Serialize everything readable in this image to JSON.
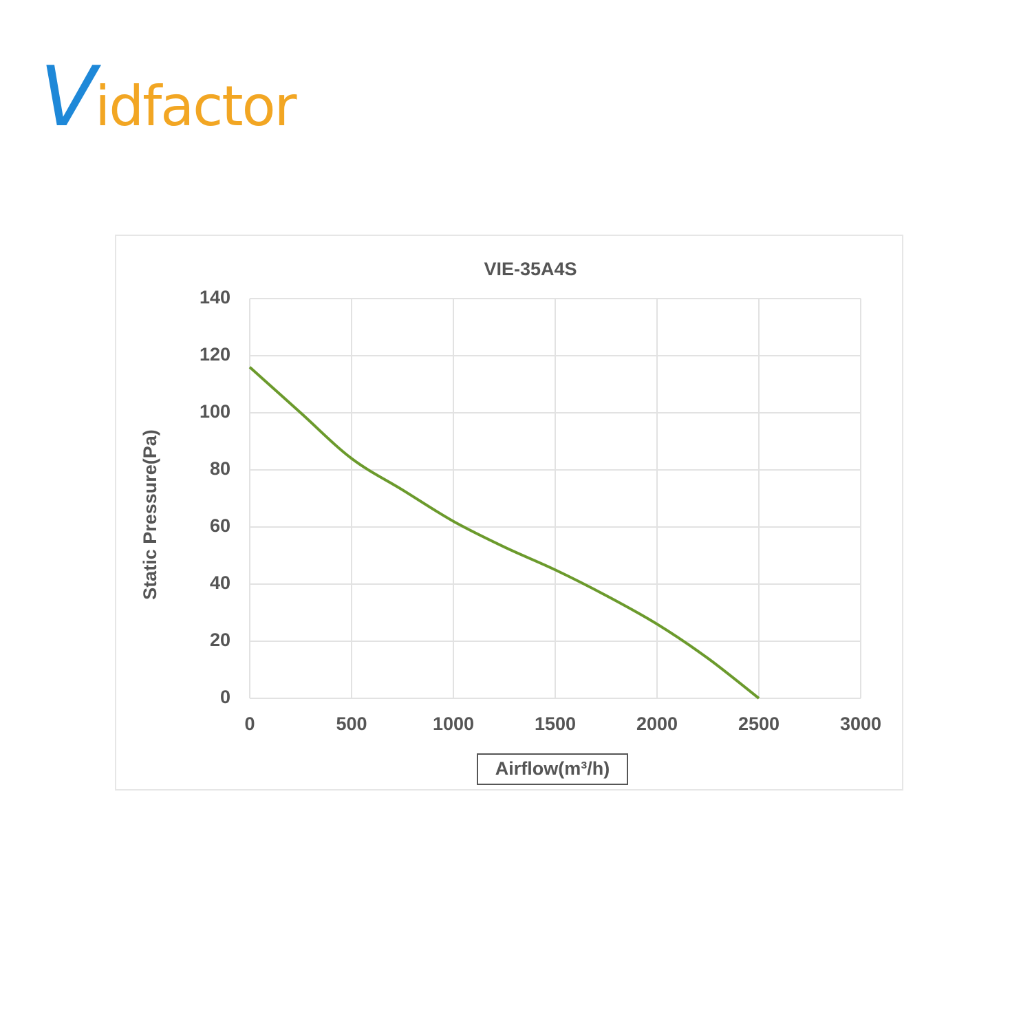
{
  "logo": "Vidfactor",
  "chart_data": {
    "type": "line",
    "title": "VIE-35A4S",
    "x_label": "Airflow(m³/h)",
    "y_label": "Static Pressure(Pa)",
    "x": [
      0,
      250,
      500,
      750,
      1000,
      1250,
      1500,
      1750,
      2000,
      2250,
      2500
    ],
    "series": [
      {
        "color": "#6b9a2c",
        "values": [
          116,
          100,
          84,
          73,
          62,
          53,
          45,
          36,
          26,
          14,
          0
        ]
      }
    ],
    "xlim": [
      0,
      3000
    ],
    "xticks": [
      0,
      500,
      1000,
      1500,
      2000,
      2500,
      3000
    ],
    "ylim": [
      0,
      140
    ],
    "yticks": [
      0,
      20,
      40,
      60,
      80,
      100,
      120,
      140
    ],
    "grid": true
  }
}
